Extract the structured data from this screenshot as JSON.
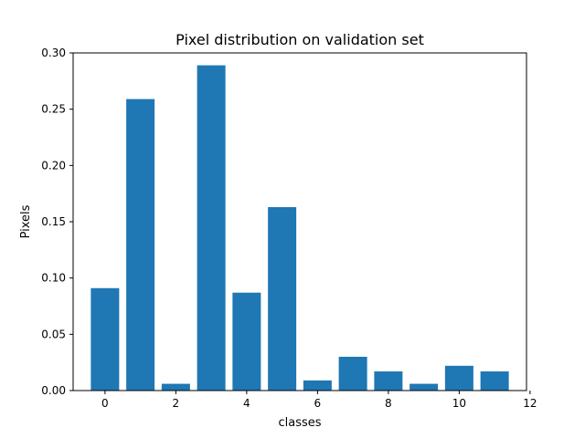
{
  "chart_data": {
    "type": "bar",
    "title": "Pixel distribution on validation set",
    "xlabel": "classes",
    "ylabel": "Pixels",
    "x": [
      0,
      1,
      2,
      3,
      4,
      5,
      6,
      7,
      8,
      9,
      10,
      11
    ],
    "values": [
      0.091,
      0.259,
      0.006,
      0.289,
      0.087,
      0.163,
      0.009,
      0.03,
      0.017,
      0.006,
      0.022,
      0.017
    ],
    "xlim": [
      -0.9,
      11.9
    ],
    "ylim": [
      0,
      0.3
    ],
    "xticks": [
      0,
      2,
      4,
      6,
      8,
      10,
      12
    ],
    "yticks": [
      0.0,
      0.05,
      0.1,
      0.15,
      0.2,
      0.25,
      0.3
    ],
    "xtick_labels": [
      "0",
      "2",
      "4",
      "6",
      "8",
      "10",
      "12"
    ],
    "ytick_labels": [
      "0.00",
      "0.05",
      "0.10",
      "0.15",
      "0.20",
      "0.25",
      "0.30"
    ],
    "bar_color": "#1f77b4",
    "grid": false,
    "legend": "none"
  }
}
